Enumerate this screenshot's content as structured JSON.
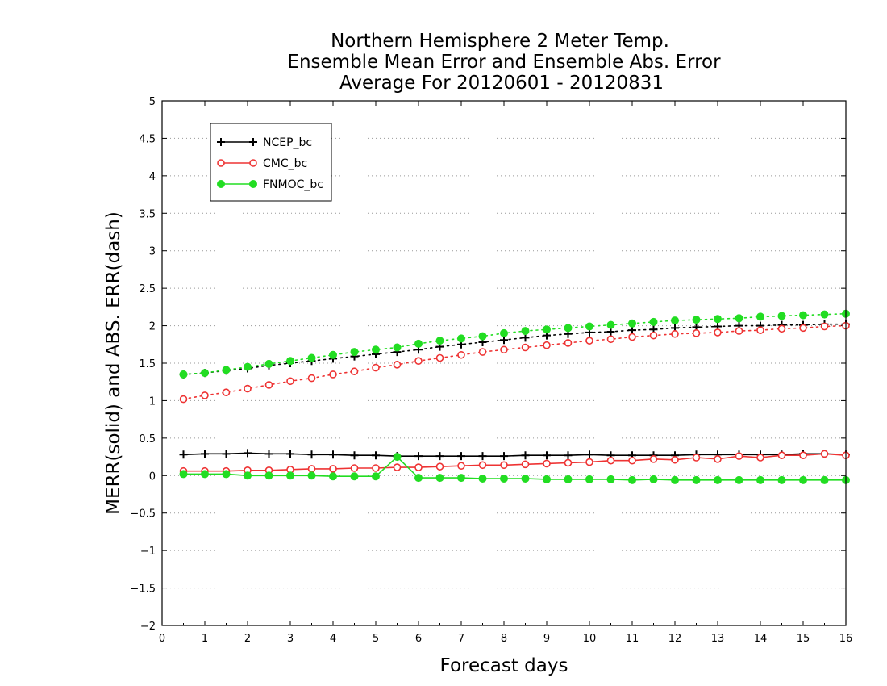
{
  "chart_data": {
    "type": "line",
    "title_lines": [
      "Northern Hemisphere 2 Meter Temp.",
      "Ensemble Mean Error and Ensemble Abs. Error",
      "Average For 20120601 - 20120831"
    ],
    "xlabel": "Forecast days",
    "ylabel": "MERR(solid) and ABS. ERR(dash)",
    "xlim": [
      0,
      16
    ],
    "ylim": [
      -2,
      5
    ],
    "x_ticks": [
      0,
      1,
      2,
      3,
      4,
      5,
      6,
      7,
      8,
      9,
      10,
      11,
      12,
      13,
      14,
      15,
      16
    ],
    "y_ticks": [
      -2,
      -1.5,
      -1,
      -0.5,
      0,
      0.5,
      1,
      1.5,
      2,
      2.5,
      3,
      3.5,
      4,
      4.5,
      5
    ],
    "grid": "horizontal dotted",
    "legend_position": "top-left",
    "x": [
      0.5,
      1,
      1.5,
      2,
      2.5,
      3,
      3.5,
      4,
      4.5,
      5,
      5.5,
      6,
      6.5,
      7,
      7.5,
      8,
      8.5,
      9,
      9.5,
      10,
      10.5,
      11,
      11.5,
      12,
      12.5,
      13,
      13.5,
      14,
      14.5,
      15,
      15.5,
      16
    ],
    "series": [
      {
        "name": "NCEP_bc",
        "color": "#000000",
        "marker": "plus",
        "mean_error": [
          0.28,
          0.29,
          0.29,
          0.3,
          0.29,
          0.29,
          0.28,
          0.28,
          0.27,
          0.27,
          0.26,
          0.26,
          0.26,
          0.26,
          0.26,
          0.26,
          0.27,
          0.27,
          0.27,
          0.28,
          0.27,
          0.27,
          0.27,
          0.27,
          0.28,
          0.28,
          0.28,
          0.28,
          0.28,
          0.29,
          0.29,
          0.28
        ],
        "abs_error": [
          1.35,
          1.37,
          1.4,
          1.43,
          1.47,
          1.5,
          1.53,
          1.56,
          1.59,
          1.62,
          1.65,
          1.68,
          1.72,
          1.75,
          1.78,
          1.81,
          1.84,
          1.87,
          1.89,
          1.91,
          1.92,
          1.94,
          1.95,
          1.97,
          1.98,
          1.99,
          2.0,
          2.0,
          2.01,
          2.01,
          2.02,
          2.02
        ]
      },
      {
        "name": "CMC_bc",
        "color": "#ee3333",
        "marker": "open-circle",
        "mean_error": [
          0.06,
          0.06,
          0.06,
          0.07,
          0.07,
          0.08,
          0.09,
          0.09,
          0.1,
          0.1,
          0.11,
          0.11,
          0.12,
          0.13,
          0.14,
          0.14,
          0.15,
          0.16,
          0.17,
          0.18,
          0.2,
          0.2,
          0.22,
          0.21,
          0.24,
          0.22,
          0.26,
          0.24,
          0.27,
          0.27,
          0.29,
          0.27
        ],
        "abs_error": [
          1.02,
          1.07,
          1.11,
          1.16,
          1.21,
          1.26,
          1.3,
          1.35,
          1.39,
          1.44,
          1.48,
          1.53,
          1.57,
          1.61,
          1.65,
          1.68,
          1.71,
          1.74,
          1.77,
          1.8,
          1.82,
          1.85,
          1.87,
          1.89,
          1.9,
          1.91,
          1.93,
          1.94,
          1.96,
          1.97,
          1.99,
          2.0
        ]
      },
      {
        "name": "FNMOC_bc",
        "color": "#22dd22",
        "marker": "filled-circle",
        "mean_error": [
          0.02,
          0.02,
          0.02,
          0.0,
          0.0,
          0.0,
          0.0,
          -0.01,
          -0.01,
          -0.01,
          0.25,
          -0.03,
          -0.03,
          -0.03,
          -0.04,
          -0.04,
          -0.04,
          -0.05,
          -0.05,
          -0.05,
          -0.05,
          -0.06,
          -0.05,
          -0.06,
          -0.06,
          -0.06,
          -0.06,
          -0.06,
          -0.06,
          -0.06,
          -0.06,
          -0.06
        ],
        "abs_error": [
          1.35,
          1.37,
          1.41,
          1.45,
          1.49,
          1.53,
          1.57,
          1.61,
          1.65,
          1.68,
          1.71,
          1.76,
          1.8,
          1.83,
          1.86,
          1.9,
          1.93,
          1.95,
          1.97,
          1.99,
          2.01,
          2.03,
          2.05,
          2.07,
          2.08,
          2.09,
          2.1,
          2.12,
          2.13,
          2.14,
          2.15,
          2.16
        ]
      }
    ]
  }
}
